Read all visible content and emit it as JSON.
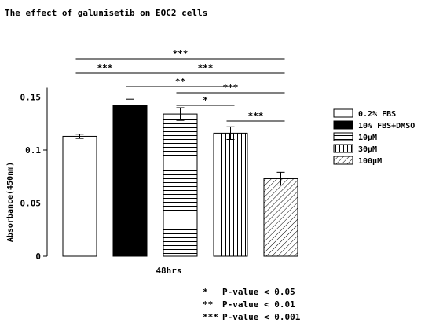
{
  "chart_data": {
    "type": "bar",
    "title": "The effect of galunisetib on EOC2 cells",
    "ylabel": "Absorbance(450nm)",
    "xlabel": "48hrs",
    "ylim": [
      0,
      0.15
    ],
    "yticks": [
      0,
      0.05,
      0.1,
      0.15
    ],
    "ytick_labels": [
      "0",
      "0.05",
      "0.1",
      "0.15"
    ],
    "legend_position": "right",
    "series": [
      {
        "name": "0.2% FBS",
        "value": 0.113,
        "error": 0.002,
        "pattern": "white"
      },
      {
        "name": "10% FBS+DMSO",
        "value": 0.142,
        "error": 0.006,
        "pattern": "black"
      },
      {
        "name": "10μM",
        "value": 0.134,
        "error": 0.006,
        "pattern": "hlines"
      },
      {
        "name": "30μM",
        "value": 0.116,
        "error": 0.006,
        "pattern": "vlines"
      },
      {
        "name": "100μM",
        "value": 0.073,
        "error": 0.006,
        "pattern": "diagonal"
      }
    ],
    "significance": [
      {
        "from": 0,
        "to": 4,
        "label": "***"
      },
      {
        "from": 0,
        "to": 1,
        "label": "***"
      },
      {
        "from": 1,
        "to": 4,
        "label": "***"
      },
      {
        "from": 1,
        "to": 3,
        "label": "**"
      },
      {
        "from": 2,
        "to": 4,
        "label": "***"
      },
      {
        "from": 2,
        "to": 3,
        "label": "*"
      },
      {
        "from": 3,
        "to": 4,
        "label": "***"
      }
    ],
    "footnotes": [
      {
        "stars": "*",
        "text": "P-value < 0.05"
      },
      {
        "stars": "**",
        "text": "P-value < 0.01"
      },
      {
        "stars": "***",
        "text": "P-value < 0.001"
      }
    ]
  }
}
